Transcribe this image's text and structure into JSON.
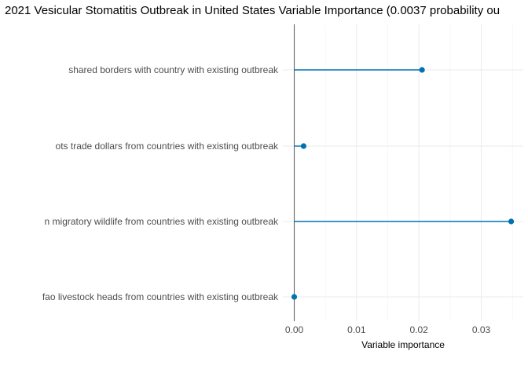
{
  "chart_data": {
    "type": "lollipop",
    "title": "2021 Vesicular Stomatitis Outbreak in United States Variable Importance (0.0037 probability ou",
    "xlabel": "Variable importance",
    "ylabel": "",
    "categories": [
      "shared borders with country with existing outbreak",
      "ots trade dollars from countries with existing outbreak",
      "n migratory wildlife from countries with existing outbreak",
      "fao livestock heads from countries with existing outbreak"
    ],
    "values": [
      0.0205,
      0.0015,
      0.0348,
      0.0
    ],
    "x_ticks": [
      "0.00",
      "0.01",
      "0.02",
      "0.03"
    ],
    "x_tick_values": [
      0.0,
      0.01,
      0.02,
      0.03
    ],
    "xlim": [
      0.0,
      0.036
    ],
    "grid": true,
    "colors": {
      "series": "#0072b2",
      "zero_line": "#666666",
      "grid": "#ebebeb"
    }
  }
}
